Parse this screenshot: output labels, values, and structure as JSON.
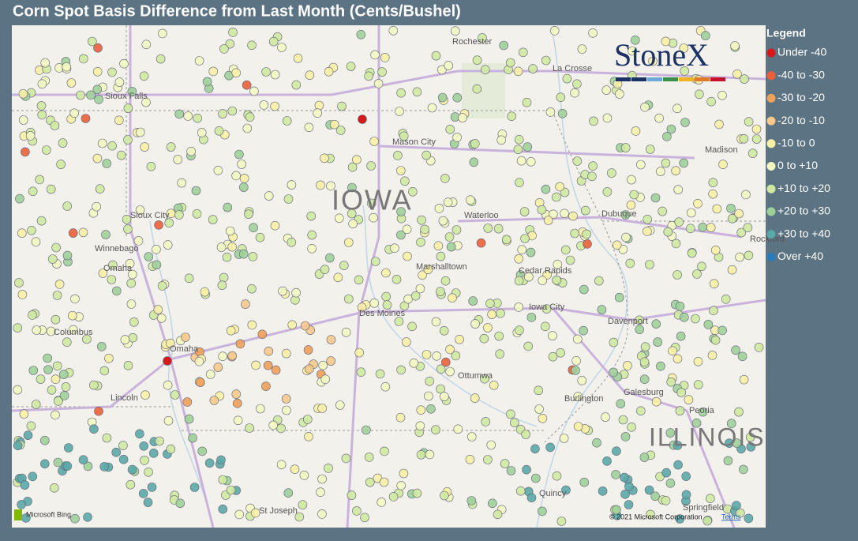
{
  "title": "Corn Spot Basis Difference from Last Month (Cents/Bushel)",
  "legend": {
    "title": "Legend",
    "items": [
      {
        "label": "Under -40",
        "color": "#d7191c"
      },
      {
        "label": "-40 to -30",
        "color": "#e8603c"
      },
      {
        "label": "-30 to -20",
        "color": "#f0a05a"
      },
      {
        "label": "-20 to -10",
        "color": "#f6c98c"
      },
      {
        "label": "-10 to 0",
        "color": "#f8efa6"
      },
      {
        "label": "0 to +10",
        "color": "#f4f7c2"
      },
      {
        "label": "+10 to +20",
        "color": "#cfe9a2"
      },
      {
        "label": "+20 to +30",
        "color": "#9fd09a"
      },
      {
        "label": "+30 to +40",
        "color": "#5aa8a8"
      },
      {
        "label": "Over +40",
        "color": "#2b7bb9"
      }
    ]
  },
  "map": {
    "places": [
      "Rochester",
      "La Crosse",
      "Sioux Falls",
      "Mason City",
      "Madison",
      "Sioux City",
      "Waterloo",
      "Dubuque",
      "Rockford",
      "Winnebago",
      "Omaha",
      "Marshalltown",
      "Cedar Rapids",
      "Iowa City",
      "Des Moines",
      "Davenport",
      "Columbus",
      "Omaha",
      "Ottumwa",
      "Lincoln",
      "Galesburg",
      "Burlington",
      "Peoria",
      "Quincy",
      "St Joseph",
      "Springfield"
    ],
    "states": [
      "IOWA",
      "ILLINOIS"
    ],
    "logo": "StoneX",
    "provider": "Microsoft Bing",
    "attribution": "© 2021 Microsoft Corporation",
    "terms": "Terms"
  }
}
